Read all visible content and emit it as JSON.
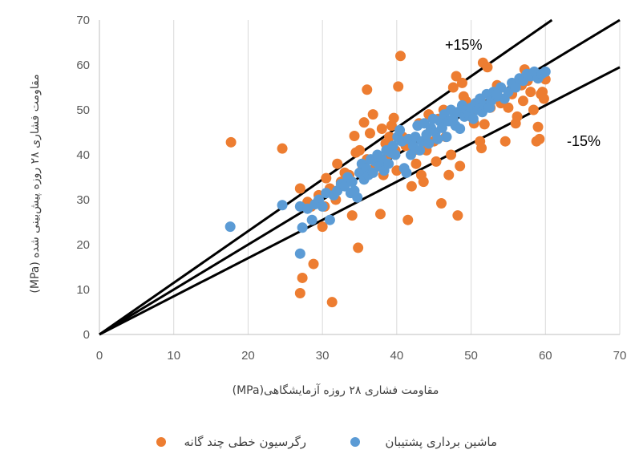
{
  "chart_data": {
    "type": "scatter",
    "xlabel": "مقاومت فشاری ۲۸ روزه آزمایشگاهی(MPa)",
    "ylabel": "مقاومت فشاری ۲۸ روزه پیش‌بینی شده (MPa)",
    "xlim": [
      0,
      70
    ],
    "ylim": [
      0,
      70
    ],
    "x_ticks": [
      "0",
      "10",
      "20",
      "30",
      "40",
      "50",
      "60",
      "70"
    ],
    "y_ticks": [
      "0",
      "10",
      "20",
      "30",
      "40",
      "50",
      "60",
      "70"
    ],
    "grid": "vertical",
    "legend_position": "bottom",
    "reference_lines": [
      {
        "label": "+15%",
        "slope": 1.15
      },
      {
        "label": "",
        "slope": 1.0
      },
      {
        "label": "-15%",
        "slope": 0.85
      }
    ],
    "series": [
      {
        "name": "رگرسیون خطی چند گانه",
        "color": "#ED7D31",
        "points": [
          [
            17.7,
            42.8
          ],
          [
            24.6,
            41.4
          ],
          [
            27,
            32.5
          ],
          [
            27,
            9.2
          ],
          [
            27.3,
            12.6
          ],
          [
            28,
            29.5
          ],
          [
            28.5,
            28.5
          ],
          [
            28.8,
            15.7
          ],
          [
            29.5,
            31
          ],
          [
            30,
            24
          ],
          [
            30.3,
            28.5
          ],
          [
            30.5,
            34.8
          ],
          [
            31,
            32.5
          ],
          [
            31.3,
            7.2
          ],
          [
            31.8,
            30
          ],
          [
            32,
            38
          ],
          [
            32.5,
            34
          ],
          [
            33,
            36
          ],
          [
            33.6,
            35.5
          ],
          [
            34,
            26.5
          ],
          [
            34.3,
            44.2
          ],
          [
            34.5,
            40.5
          ],
          [
            34.8,
            19.3
          ],
          [
            35,
            41
          ],
          [
            35.3,
            36.5
          ],
          [
            35.6,
            47.2
          ],
          [
            36,
            54.5
          ],
          [
            36,
            39
          ],
          [
            36.4,
            44.8
          ],
          [
            36.8,
            49
          ],
          [
            37,
            37
          ],
          [
            37.5,
            38
          ],
          [
            37.8,
            26.8
          ],
          [
            38,
            45.8
          ],
          [
            38.2,
            35.5
          ],
          [
            38.5,
            42.5
          ],
          [
            38.8,
            40
          ],
          [
            39,
            44
          ],
          [
            39.3,
            46.5
          ],
          [
            39.6,
            48.2
          ],
          [
            39.8,
            41
          ],
          [
            40,
            36.5
          ],
          [
            40.2,
            55.2
          ],
          [
            40.5,
            62
          ],
          [
            40.8,
            44
          ],
          [
            41.2,
            42
          ],
          [
            41.5,
            25.5
          ],
          [
            42,
            33
          ],
          [
            42.3,
            41
          ],
          [
            42.6,
            38
          ],
          [
            43,
            47
          ],
          [
            43.3,
            35.5
          ],
          [
            43.6,
            34
          ],
          [
            44,
            41
          ],
          [
            44.3,
            49
          ],
          [
            44.6,
            45.5
          ],
          [
            45,
            43
          ],
          [
            45.3,
            38.5
          ],
          [
            45.6,
            48
          ],
          [
            46,
            29.2
          ],
          [
            46.3,
            50
          ],
          [
            46.6,
            44
          ],
          [
            47,
            35.5
          ],
          [
            47.3,
            40
          ],
          [
            47.6,
            55
          ],
          [
            48,
            57.5
          ],
          [
            48.2,
            26.5
          ],
          [
            48.5,
            37.5
          ],
          [
            48.8,
            56
          ],
          [
            49,
            53
          ],
          [
            49.3,
            52
          ],
          [
            49.6,
            49
          ],
          [
            50,
            48.5
          ],
          [
            50.4,
            47
          ],
          [
            50.8,
            51
          ],
          [
            51.2,
            43
          ],
          [
            51.4,
            41.5
          ],
          [
            51.6,
            60.5
          ],
          [
            51.8,
            46.8
          ],
          [
            52.2,
            59.5
          ],
          [
            52.6,
            50.5
          ],
          [
            53,
            53.5
          ],
          [
            53.5,
            55.5
          ],
          [
            54,
            51.5
          ],
          [
            54.6,
            43
          ],
          [
            55,
            50.5
          ],
          [
            55.5,
            53.5
          ],
          [
            56,
            47
          ],
          [
            56.2,
            48.5
          ],
          [
            56.8,
            55.5
          ],
          [
            57,
            52
          ],
          [
            57.2,
            59
          ],
          [
            57.6,
            56.5
          ],
          [
            58,
            54
          ],
          [
            58.4,
            50
          ],
          [
            58.8,
            43
          ],
          [
            59,
            46.2
          ],
          [
            59.2,
            43.5
          ],
          [
            59.4,
            53.5
          ],
          [
            59.6,
            54
          ],
          [
            59.8,
            52.5
          ],
          [
            60,
            56.8
          ]
        ]
      },
      {
        "name": "ماشین برداری پشتیبان",
        "color": "#5B9BD5",
        "points": [
          [
            17.6,
            24
          ],
          [
            24.6,
            28.8
          ],
          [
            27,
            28.5
          ],
          [
            27,
            18
          ],
          [
            27.3,
            23.8
          ],
          [
            28,
            28
          ],
          [
            28.6,
            25.5
          ],
          [
            29,
            29
          ],
          [
            29.5,
            30
          ],
          [
            30,
            28.5
          ],
          [
            30.5,
            31.5
          ],
          [
            31,
            25.5
          ],
          [
            31.5,
            31
          ],
          [
            32,
            32
          ],
          [
            32.5,
            33.5
          ],
          [
            33,
            33
          ],
          [
            33.4,
            35
          ],
          [
            33.8,
            31.5
          ],
          [
            34,
            34
          ],
          [
            34.3,
            32
          ],
          [
            34.7,
            30.5
          ],
          [
            35,
            36
          ],
          [
            35.3,
            38
          ],
          [
            35.6,
            34.5
          ],
          [
            35.9,
            37
          ],
          [
            36.2,
            35.5
          ],
          [
            36.5,
            39
          ],
          [
            36.8,
            36
          ],
          [
            37.1,
            38.5
          ],
          [
            37.4,
            40
          ],
          [
            37.7,
            37.5
          ],
          [
            38,
            39
          ],
          [
            38.3,
            36.5
          ],
          [
            38.6,
            41
          ],
          [
            38.9,
            38
          ],
          [
            39.2,
            40.5
          ],
          [
            39.5,
            42
          ],
          [
            39.8,
            40
          ],
          [
            40.1,
            44
          ],
          [
            40.4,
            45.5
          ],
          [
            40.7,
            43
          ],
          [
            41,
            37
          ],
          [
            41.3,
            36
          ],
          [
            41.6,
            43.5
          ],
          [
            41.9,
            40
          ],
          [
            42.2,
            42
          ],
          [
            42.5,
            44
          ],
          [
            42.8,
            46.5
          ],
          [
            43.1,
            41
          ],
          [
            43.4,
            43
          ],
          [
            43.7,
            47
          ],
          [
            44,
            44.5
          ],
          [
            44.3,
            42.5
          ],
          [
            44.6,
            46
          ],
          [
            44.9,
            48
          ],
          [
            45.2,
            45
          ],
          [
            45.5,
            43.5
          ],
          [
            45.8,
            47.5
          ],
          [
            46.1,
            46
          ],
          [
            46.4,
            49
          ],
          [
            46.7,
            44
          ],
          [
            47,
            47.5
          ],
          [
            47.3,
            50
          ],
          [
            47.6,
            48
          ],
          [
            47.9,
            46.5
          ],
          [
            48.2,
            49.5
          ],
          [
            48.5,
            45.8
          ],
          [
            48.8,
            51
          ],
          [
            49.1,
            48.5
          ],
          [
            49.4,
            50
          ],
          [
            49.7,
            49
          ],
          [
            50,
            50.5
          ],
          [
            50.3,
            48
          ],
          [
            50.6,
            51.5
          ],
          [
            50.9,
            50
          ],
          [
            51.2,
            52.5
          ],
          [
            51.5,
            49.5
          ],
          [
            51.8,
            51
          ],
          [
            52.1,
            53.5
          ],
          [
            52.4,
            50.5
          ],
          [
            52.7,
            52
          ],
          [
            53,
            54
          ],
          [
            53.5,
            53
          ],
          [
            54,
            55
          ],
          [
            54.5,
            52.5
          ],
          [
            55,
            54
          ],
          [
            55.5,
            56
          ],
          [
            56,
            55
          ],
          [
            56.5,
            57
          ],
          [
            57,
            56.5
          ],
          [
            57.5,
            58
          ],
          [
            58,
            57.5
          ],
          [
            58.5,
            58.5
          ],
          [
            59,
            57
          ],
          [
            59.5,
            58
          ],
          [
            60,
            58.5
          ],
          [
            52.5,
            50.5
          ],
          [
            53.5,
            53.5
          ]
        ]
      }
    ]
  }
}
